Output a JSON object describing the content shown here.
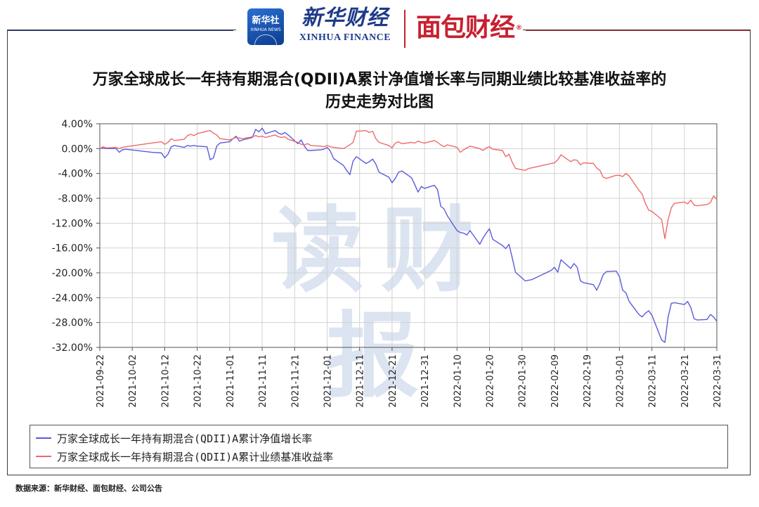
{
  "header": {
    "xinhua_logo_cn": "新华社",
    "xinhua_logo_en": "XINHUA NEWS",
    "xhfinance_cn": "新华财经",
    "xhfinance_en": "XINHUA FINANCE",
    "mianbao_logo": "面包财经",
    "mianbao_reg": "®"
  },
  "title_line1": "万家全球成长一年持有期混合(QDII)A累计净值增长率与同期业绩比较基准收益率的",
  "title_line2": "历史走势对比图",
  "watermark": "读财报",
  "source": "数据来源：新华财经、面包财经、公司公告",
  "colors": {
    "series_blue": "#5b5bdc",
    "series_red": "#ee6a6a",
    "grid": "#d2d2d2",
    "axis": "#555555"
  },
  "chart_data": {
    "type": "line",
    "ylim": [
      -32,
      4
    ],
    "yticks": [
      4,
      0,
      -4,
      -8,
      -12,
      -16,
      -20,
      -24,
      -28,
      -32
    ],
    "ytick_labels": [
      "4.00%",
      "0.00%",
      "-4.00%",
      "-8.00%",
      "-12.00%",
      "-16.00%",
      "-20.00%",
      "-24.00%",
      "-28.00%",
      "-32.00%"
    ],
    "xlim": [
      "2021-09-22",
      "2022-03-31"
    ],
    "xticks": [
      "2021-09-22",
      "2021-10-02",
      "2021-10-12",
      "2021-10-22",
      "2021-11-01",
      "2021-11-11",
      "2021-11-21",
      "2021-12-01",
      "2021-12-11",
      "2021-12-21",
      "2021-12-31",
      "2022-01-10",
      "2022-01-20",
      "2022-01-30",
      "2022-02-09",
      "2022-02-19",
      "2022-03-01",
      "2022-03-11",
      "2022-03-21",
      "2022-03-31"
    ],
    "grid": true,
    "legend_position": "bottom",
    "series": [
      {
        "name": "万家全球成长一年持有期混合(QDII)A累计净值增长率",
        "color": "#5b5bdc",
        "points": [
          [
            "2021-09-22",
            0.0
          ],
          [
            "2021-09-23",
            0.1
          ],
          [
            "2021-09-24",
            0.0
          ],
          [
            "2021-09-27",
            0.0
          ],
          [
            "2021-09-28",
            -0.6
          ],
          [
            "2021-09-29",
            -0.2
          ],
          [
            "2021-09-30",
            -0.1
          ],
          [
            "2021-10-08",
            -0.6
          ],
          [
            "2021-10-11",
            -0.7
          ],
          [
            "2021-10-12",
            -1.5
          ],
          [
            "2021-10-13",
            -0.9
          ],
          [
            "2021-10-14",
            0.3
          ],
          [
            "2021-10-15",
            0.5
          ],
          [
            "2021-10-18",
            0.2
          ],
          [
            "2021-10-19",
            0.5
          ],
          [
            "2021-10-20",
            0.4
          ],
          [
            "2021-10-21",
            0.5
          ],
          [
            "2021-10-22",
            0.4
          ],
          [
            "2021-10-25",
            0.3
          ],
          [
            "2021-10-26",
            -1.8
          ],
          [
            "2021-10-27",
            -1.5
          ],
          [
            "2021-10-28",
            0.4
          ],
          [
            "2021-10-29",
            0.9
          ],
          [
            "2021-11-01",
            1.1
          ],
          [
            "2021-11-02",
            1.6
          ],
          [
            "2021-11-03",
            2.0
          ],
          [
            "2021-11-04",
            1.2
          ],
          [
            "2021-11-05",
            1.4
          ],
          [
            "2021-11-08",
            1.8
          ],
          [
            "2021-11-09",
            3.1
          ],
          [
            "2021-11-10",
            2.7
          ],
          [
            "2021-11-11",
            3.3
          ],
          [
            "2021-11-12",
            2.4
          ],
          [
            "2021-11-15",
            2.9
          ],
          [
            "2021-11-16",
            2.5
          ],
          [
            "2021-11-17",
            2.3
          ],
          [
            "2021-11-18",
            2.6
          ],
          [
            "2021-11-19",
            2.2
          ],
          [
            "2021-11-22",
            0.8
          ],
          [
            "2021-11-23",
            1.4
          ],
          [
            "2021-11-24",
            0.4
          ],
          [
            "2021-11-25",
            -0.3
          ],
          [
            "2021-11-26",
            -0.3
          ],
          [
            "2021-11-29",
            -0.2
          ],
          [
            "2021-11-30",
            -0.1
          ],
          [
            "2021-12-01",
            0.2
          ],
          [
            "2021-12-02",
            -0.4
          ],
          [
            "2021-12-03",
            -1.6
          ],
          [
            "2021-12-06",
            -2.7
          ],
          [
            "2021-12-07",
            -3.5
          ],
          [
            "2021-12-08",
            -4.2
          ],
          [
            "2021-12-09",
            -2.0
          ],
          [
            "2021-12-10",
            -1.3
          ],
          [
            "2021-12-13",
            -2.4
          ],
          [
            "2021-12-14",
            -2.1
          ],
          [
            "2021-12-15",
            -1.7
          ],
          [
            "2021-12-16",
            -2.5
          ],
          [
            "2021-12-17",
            -3.8
          ],
          [
            "2021-12-20",
            -4.6
          ],
          [
            "2021-12-21",
            -5.5
          ],
          [
            "2021-12-22",
            -4.8
          ],
          [
            "2021-12-23",
            -3.8
          ],
          [
            "2021-12-24",
            -3.6
          ],
          [
            "2021-12-27",
            -4.7
          ],
          [
            "2021-12-28",
            -5.8
          ],
          [
            "2021-12-29",
            -7.0
          ],
          [
            "2021-12-30",
            -6.1
          ],
          [
            "2021-12-31",
            -6.4
          ],
          [
            "2022-01-03",
            -5.9
          ],
          [
            "2022-01-04",
            -6.6
          ],
          [
            "2022-01-05",
            -9.3
          ],
          [
            "2022-01-06",
            -9.7
          ],
          [
            "2022-01-07",
            -10.8
          ],
          [
            "2022-01-10",
            -13.2
          ],
          [
            "2022-01-11",
            -13.5
          ],
          [
            "2022-01-12",
            -13.6
          ],
          [
            "2022-01-13",
            -13.9
          ],
          [
            "2022-01-14",
            -13.2
          ],
          [
            "2022-01-17",
            -15.4
          ],
          [
            "2022-01-18",
            -14.4
          ],
          [
            "2022-01-19",
            -13.6
          ],
          [
            "2022-01-20",
            -12.9
          ],
          [
            "2022-01-21",
            -14.6
          ],
          [
            "2022-01-24",
            -15.6
          ],
          [
            "2022-01-25",
            -16.1
          ],
          [
            "2022-01-26",
            -15.4
          ],
          [
            "2022-01-27",
            -17.6
          ],
          [
            "2022-01-28",
            -19.9
          ],
          [
            "2022-01-31",
            -21.3
          ],
          [
            "2022-02-01",
            -21.2
          ],
          [
            "2022-02-02",
            -21.1
          ],
          [
            "2022-02-08",
            -19.6
          ],
          [
            "2022-02-09",
            -19.1
          ],
          [
            "2022-02-10",
            -19.9
          ],
          [
            "2022-02-11",
            -17.9
          ],
          [
            "2022-02-14",
            -19.3
          ],
          [
            "2022-02-15",
            -18.5
          ],
          [
            "2022-02-16",
            -19.1
          ],
          [
            "2022-02-17",
            -21.3
          ],
          [
            "2022-02-18",
            -21.6
          ],
          [
            "2022-02-21",
            -21.9
          ],
          [
            "2022-02-22",
            -22.8
          ],
          [
            "2022-02-23",
            -21.7
          ],
          [
            "2022-02-24",
            -20.3
          ],
          [
            "2022-02-25",
            -19.8
          ],
          [
            "2022-02-28",
            -19.7
          ],
          [
            "2022-03-01",
            -20.6
          ],
          [
            "2022-03-02",
            -22.8
          ],
          [
            "2022-03-03",
            -23.2
          ],
          [
            "2022-03-04",
            -24.6
          ],
          [
            "2022-03-07",
            -26.7
          ],
          [
            "2022-03-08",
            -27.1
          ],
          [
            "2022-03-09",
            -26.5
          ],
          [
            "2022-03-10",
            -26.1
          ],
          [
            "2022-03-11",
            -26.8
          ],
          [
            "2022-03-14",
            -30.8
          ],
          [
            "2022-03-15",
            -31.2
          ],
          [
            "2022-03-16",
            -27.1
          ],
          [
            "2022-03-17",
            -24.9
          ],
          [
            "2022-03-18",
            -24.8
          ],
          [
            "2022-03-21",
            -25.1
          ],
          [
            "2022-03-22",
            -24.6
          ],
          [
            "2022-03-23",
            -25.6
          ],
          [
            "2022-03-24",
            -27.4
          ],
          [
            "2022-03-25",
            -27.6
          ],
          [
            "2022-03-28",
            -27.5
          ],
          [
            "2022-03-29",
            -26.7
          ],
          [
            "2022-03-30",
            -27.1
          ],
          [
            "2022-03-31",
            -27.8
          ]
        ]
      },
      {
        "name": "万家全球成长一年持有期混合(QDII)A累计业绩基准收益率",
        "color": "#ee6a6a",
        "points": [
          [
            "2021-09-22",
            0.0
          ],
          [
            "2021-09-23",
            0.3
          ],
          [
            "2021-09-24",
            0.1
          ],
          [
            "2021-09-27",
            0.2
          ],
          [
            "2021-09-28",
            0.0
          ],
          [
            "2021-09-29",
            0.2
          ],
          [
            "2021-09-30",
            0.3
          ],
          [
            "2021-10-08",
            0.9
          ],
          [
            "2021-10-11",
            1.1
          ],
          [
            "2021-10-12",
            0.7
          ],
          [
            "2021-10-13",
            1.0
          ],
          [
            "2021-10-14",
            1.6
          ],
          [
            "2021-10-15",
            1.3
          ],
          [
            "2021-10-18",
            1.5
          ],
          [
            "2021-10-19",
            2.1
          ],
          [
            "2021-10-20",
            2.3
          ],
          [
            "2021-10-21",
            2.1
          ],
          [
            "2021-10-22",
            2.4
          ],
          [
            "2021-10-25",
            2.8
          ],
          [
            "2021-10-26",
            2.9
          ],
          [
            "2021-10-27",
            2.5
          ],
          [
            "2021-10-28",
            2.2
          ],
          [
            "2021-10-29",
            1.6
          ],
          [
            "2021-11-01",
            1.4
          ],
          [
            "2021-11-02",
            1.6
          ],
          [
            "2021-11-03",
            1.8
          ],
          [
            "2021-11-04",
            1.7
          ],
          [
            "2021-11-05",
            1.6
          ],
          [
            "2021-11-08",
            1.9
          ],
          [
            "2021-11-09",
            2.1
          ],
          [
            "2021-11-10",
            1.9
          ],
          [
            "2021-11-11",
            2.0
          ],
          [
            "2021-11-12",
            1.8
          ],
          [
            "2021-11-15",
            2.2
          ],
          [
            "2021-11-16",
            1.9
          ],
          [
            "2021-11-17",
            1.8
          ],
          [
            "2021-11-18",
            1.9
          ],
          [
            "2021-11-19",
            1.5
          ],
          [
            "2021-11-22",
            1.0
          ],
          [
            "2021-11-23",
            0.7
          ],
          [
            "2021-11-24",
            0.6
          ],
          [
            "2021-11-25",
            0.8
          ],
          [
            "2021-11-26",
            0.5
          ],
          [
            "2021-11-29",
            0.4
          ],
          [
            "2021-11-30",
            0.3
          ],
          [
            "2021-12-01",
            0.5
          ],
          [
            "2021-12-02",
            0.3
          ],
          [
            "2021-12-03",
            0.2
          ],
          [
            "2021-12-06",
            0.0
          ],
          [
            "2021-12-07",
            0.3
          ],
          [
            "2021-12-08",
            0.6
          ],
          [
            "2021-12-09",
            1.0
          ],
          [
            "2021-12-10",
            2.8
          ],
          [
            "2021-12-13",
            2.9
          ],
          [
            "2021-12-14",
            2.6
          ],
          [
            "2021-12-15",
            2.8
          ],
          [
            "2021-12-16",
            1.6
          ],
          [
            "2021-12-17",
            1.0
          ],
          [
            "2021-12-20",
            0.5
          ],
          [
            "2021-12-21",
            0.1
          ],
          [
            "2021-12-22",
            0.9
          ],
          [
            "2021-12-23",
            1.1
          ],
          [
            "2021-12-24",
            0.8
          ],
          [
            "2021-12-27",
            1.0
          ],
          [
            "2021-12-28",
            0.9
          ],
          [
            "2021-12-29",
            1.2
          ],
          [
            "2021-12-30",
            1.0
          ],
          [
            "2021-12-31",
            0.9
          ],
          [
            "2022-01-03",
            1.3
          ],
          [
            "2022-01-04",
            1.0
          ],
          [
            "2022-01-05",
            0.6
          ],
          [
            "2022-01-06",
            0.3
          ],
          [
            "2022-01-07",
            0.6
          ],
          [
            "2022-01-10",
            0.2
          ],
          [
            "2022-01-11",
            -0.6
          ],
          [
            "2022-01-12",
            -0.2
          ],
          [
            "2022-01-13",
            0.1
          ],
          [
            "2022-01-14",
            0.4
          ],
          [
            "2022-01-17",
            0.0
          ],
          [
            "2022-01-18",
            -0.3
          ],
          [
            "2022-01-19",
            0.1
          ],
          [
            "2022-01-20",
            0.3
          ],
          [
            "2022-01-21",
            -0.1
          ],
          [
            "2022-01-24",
            -0.3
          ],
          [
            "2022-01-25",
            -1.3
          ],
          [
            "2022-01-26",
            -0.9
          ],
          [
            "2022-01-27",
            -2.2
          ],
          [
            "2022-01-28",
            -3.2
          ],
          [
            "2022-01-31",
            -3.5
          ],
          [
            "2022-02-01",
            -3.2
          ],
          [
            "2022-02-02",
            -3.1
          ],
          [
            "2022-02-08",
            -2.4
          ],
          [
            "2022-02-09",
            -2.3
          ],
          [
            "2022-02-10",
            -1.8
          ],
          [
            "2022-02-11",
            -1.0
          ],
          [
            "2022-02-14",
            -2.1
          ],
          [
            "2022-02-15",
            -1.8
          ],
          [
            "2022-02-16",
            -1.9
          ],
          [
            "2022-02-17",
            -2.6
          ],
          [
            "2022-02-18",
            -2.3
          ],
          [
            "2022-02-21",
            -2.4
          ],
          [
            "2022-02-22",
            -3.1
          ],
          [
            "2022-02-23",
            -3.5
          ],
          [
            "2022-02-24",
            -4.6
          ],
          [
            "2022-02-25",
            -4.8
          ],
          [
            "2022-02-28",
            -4.3
          ],
          [
            "2022-03-01",
            -4.3
          ],
          [
            "2022-03-02",
            -4.5
          ],
          [
            "2022-03-03",
            -4.0
          ],
          [
            "2022-03-04",
            -4.4
          ],
          [
            "2022-03-07",
            -6.7
          ],
          [
            "2022-03-08",
            -7.3
          ],
          [
            "2022-03-09",
            -8.8
          ],
          [
            "2022-03-10",
            -9.9
          ],
          [
            "2022-03-11",
            -10.1
          ],
          [
            "2022-03-14",
            -11.4
          ],
          [
            "2022-03-15",
            -14.5
          ],
          [
            "2022-03-16",
            -11.4
          ],
          [
            "2022-03-17",
            -9.5
          ],
          [
            "2022-03-18",
            -8.8
          ],
          [
            "2022-03-21",
            -8.6
          ],
          [
            "2022-03-22",
            -8.9
          ],
          [
            "2022-03-23",
            -8.3
          ],
          [
            "2022-03-24",
            -9.1
          ],
          [
            "2022-03-25",
            -9.2
          ],
          [
            "2022-03-28",
            -9.0
          ],
          [
            "2022-03-29",
            -8.7
          ],
          [
            "2022-03-30",
            -7.6
          ],
          [
            "2022-03-31",
            -8.2
          ]
        ]
      }
    ]
  }
}
